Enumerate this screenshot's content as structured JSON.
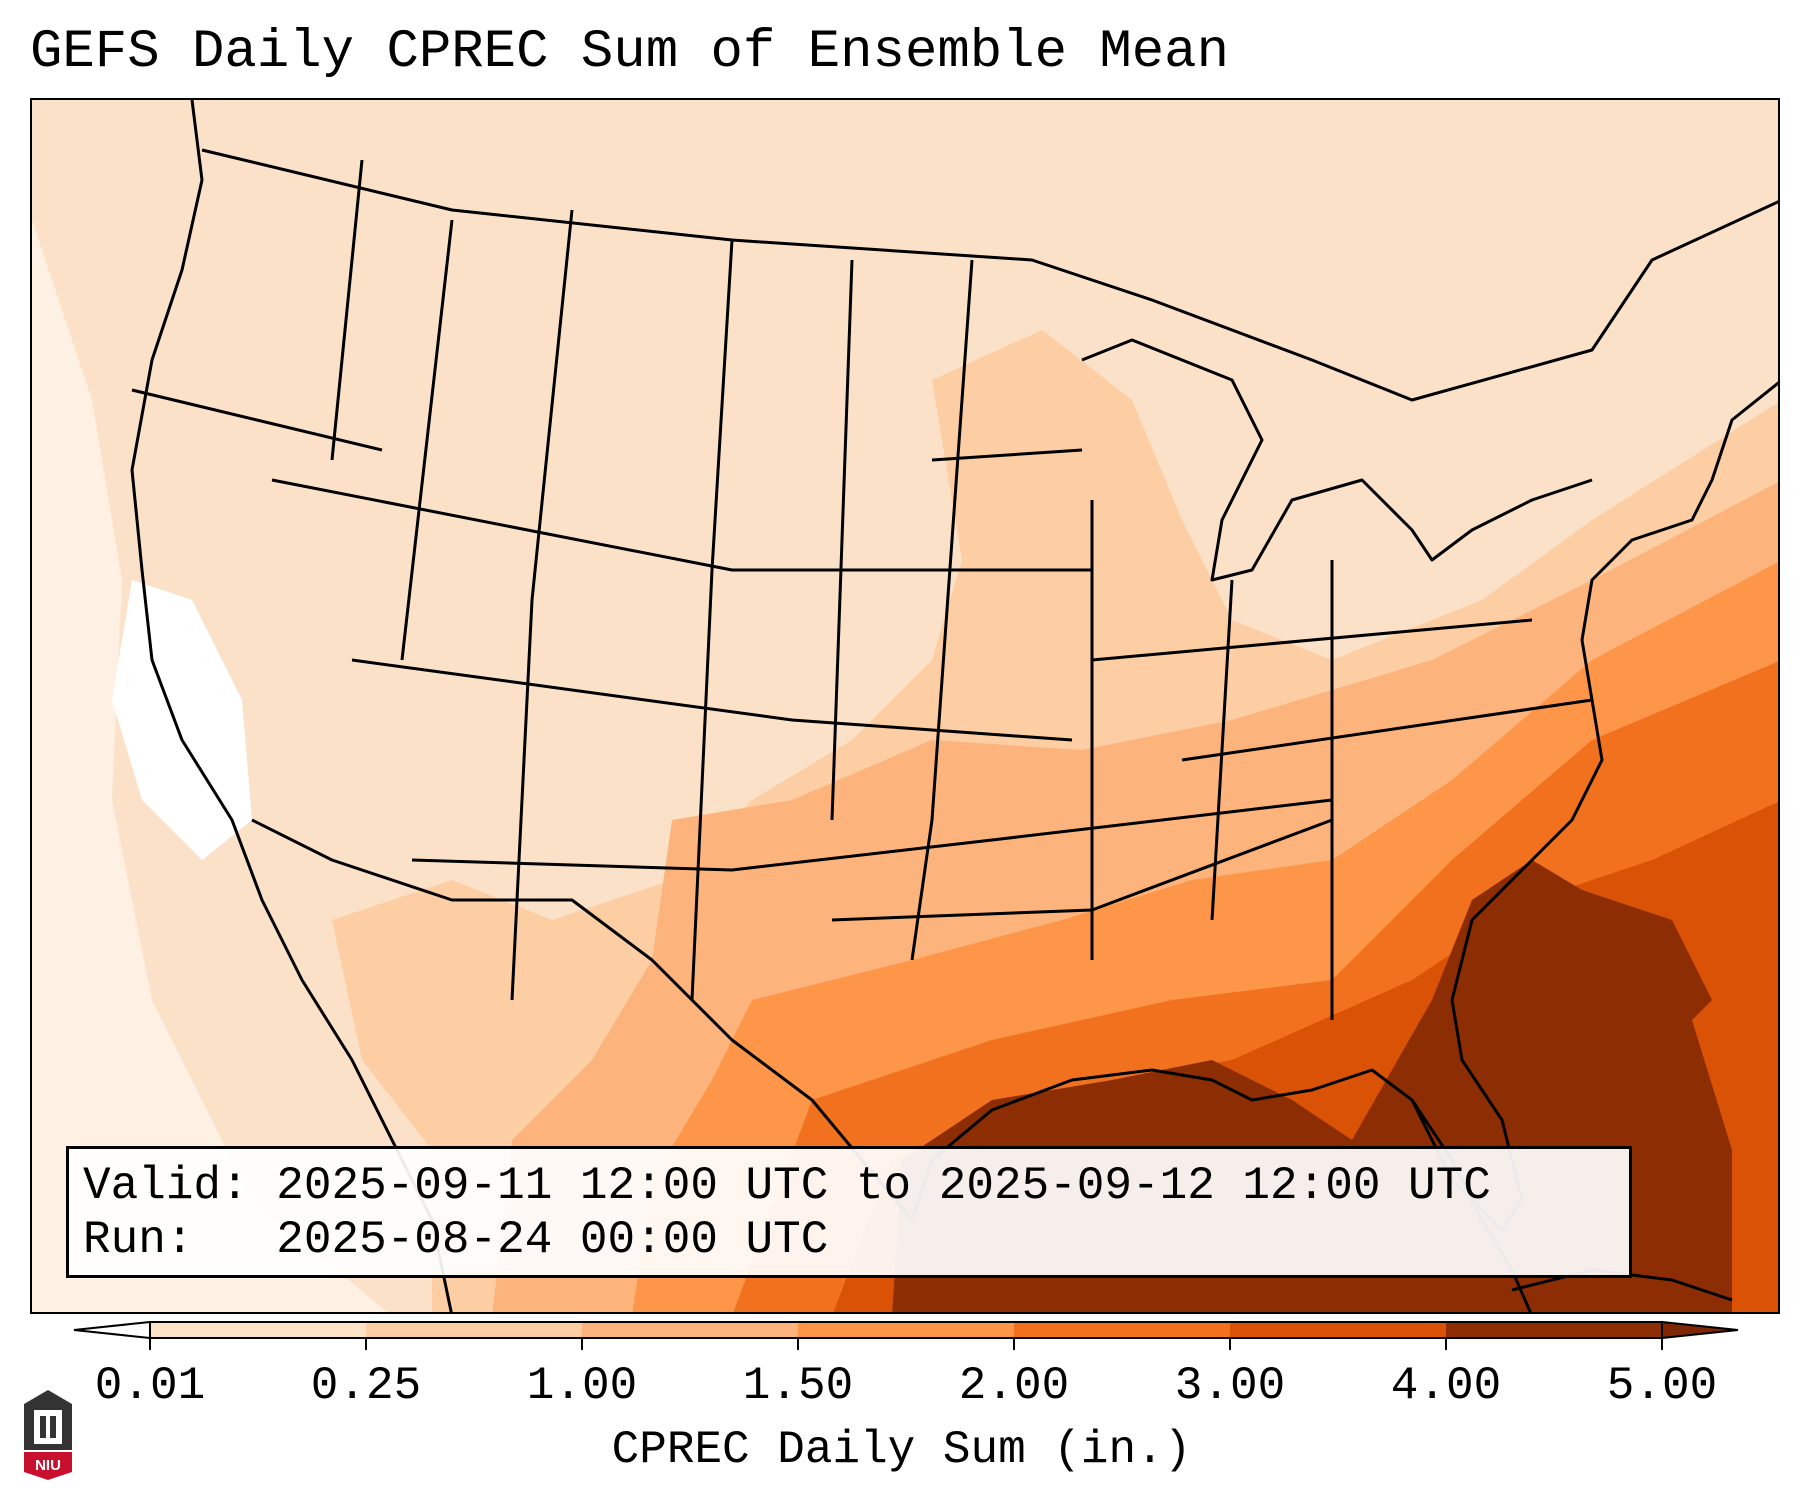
{
  "title": "GEFS Daily CPREC Sum of Ensemble Mean",
  "valid_label": "Valid:",
  "valid_value": "2025-09-11 12:00 UTC to 2025-09-12 12:00 UTC",
  "run_label": "Run:",
  "run_value": "2025-08-24 00:00 UTC",
  "colorbar": {
    "label": "CPREC Daily Sum (in.)",
    "ticks": [
      "0.01",
      "0.25",
      "1.00",
      "1.50",
      "2.00",
      "3.00",
      "4.00",
      "5.00"
    ],
    "colors": [
      "#fef0e3",
      "#fde2c8",
      "#fdcda3",
      "#fdb47c",
      "#fd9649",
      "#f2711e",
      "#d95205",
      "#8c2d04"
    ],
    "under_color": "#ffffff",
    "over_color": "#7f2704"
  },
  "logo": {
    "text": "NIU",
    "color": "#c8102e"
  },
  "colors": {
    "land_light": "#fbe1c8",
    "land_lightest": "#fef0e3",
    "gulf_heavy": "#8c2d04",
    "east_moderate": "#f2711e",
    "east_heavy": "#d95205"
  }
}
